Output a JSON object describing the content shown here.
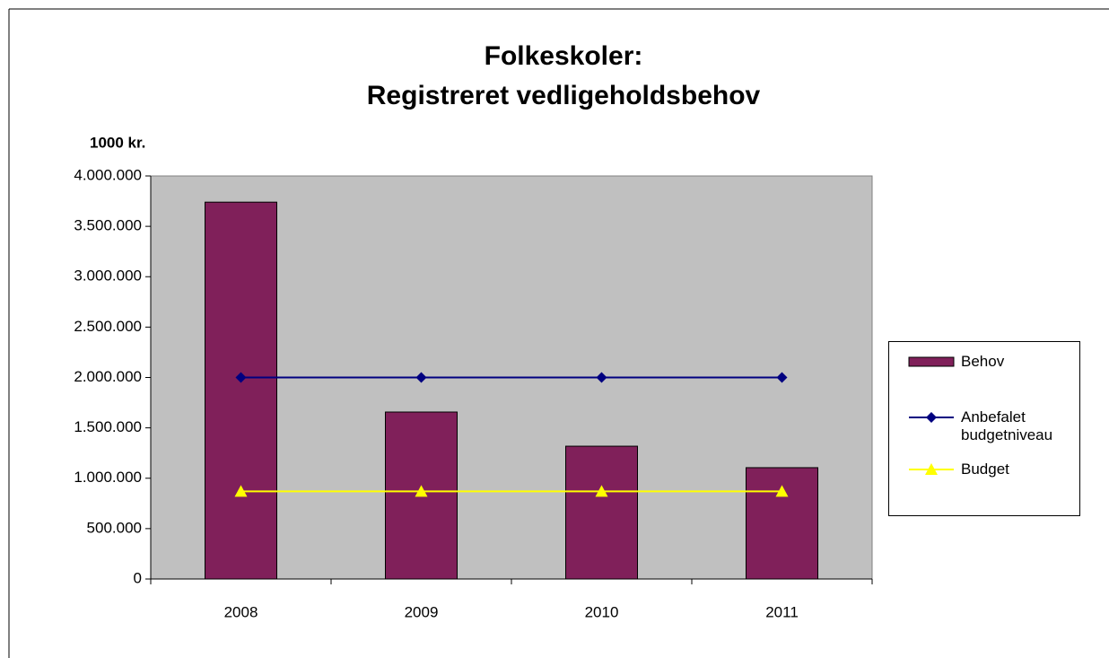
{
  "chart_data": {
    "type": "bar",
    "title": [
      "Folkeskoler:",
      "Registreret vedligeholdsbehov"
    ],
    "y_axis_label": "1000 kr.",
    "categories": [
      "2008",
      "2009",
      "2010",
      "2011"
    ],
    "series": [
      {
        "name": "Behov",
        "type": "bar",
        "color": "#80205a",
        "values": [
          3740000,
          1657000,
          1318000,
          1105000
        ]
      },
      {
        "name": "Anbefalet budgetniveau",
        "type": "line",
        "marker": "diamond",
        "color": "#000080",
        "values": [
          2000000,
          2000000,
          2000000,
          2000000
        ]
      },
      {
        "name": "Budget",
        "type": "line",
        "marker": "triangle",
        "color": "#ffff00",
        "values": [
          870000,
          870000,
          870000,
          870000
        ]
      }
    ],
    "ylim": [
      0,
      4000000
    ],
    "yticks": [
      0,
      {
        "value": 500000,
        "label": "500.000"
      },
      {
        "value": 1000000,
        "label": "1.000.000"
      },
      {
        "value": 1500000,
        "label": "1.500.000"
      },
      {
        "value": 2000000,
        "label": "2.000.000"
      },
      {
        "value": 2500000,
        "label": "2.500.000"
      },
      {
        "value": 3000000,
        "label": "3.000.000"
      },
      {
        "value": 3500000,
        "label": "3.500.000"
      },
      {
        "value": 4000000,
        "label": "4.000.000"
      }
    ],
    "plot_background": "#c0c0c0",
    "grid": false,
    "legend": "right"
  }
}
